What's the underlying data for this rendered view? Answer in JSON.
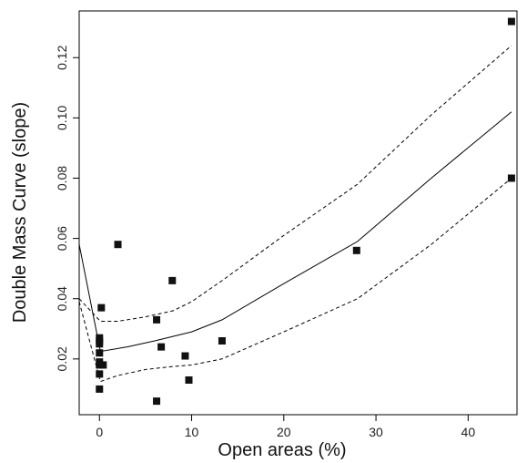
{
  "chart_data": {
    "type": "scatter",
    "title": "",
    "xlabel": "Open areas (%)",
    "ylabel": "Double Mass Curve (slope)",
    "xlim": [
      -2.2,
      45.3
    ],
    "ylim": [
      0.0015,
      0.1355
    ],
    "xticks": [
      0,
      10,
      20,
      30,
      40
    ],
    "yticks": [
      0.02,
      0.04,
      0.06,
      0.08,
      0.1,
      0.12
    ],
    "ytick_labels": [
      "0.02",
      "0.04",
      "0.06",
      "0.08",
      "0.10",
      "0.12"
    ],
    "grid": false,
    "series": [
      {
        "kind": "points",
        "x": [
          0.0,
          0.0,
          0.0,
          0.0,
          0.0,
          0.0,
          0.0,
          0.0,
          0.2,
          0.4,
          2.0,
          6.2,
          6.2,
          6.7,
          7.9,
          9.3,
          9.7,
          13.3,
          27.9,
          44.7,
          44.7
        ],
        "y": [
          0.01,
          0.015,
          0.019,
          0.022,
          0.025,
          0.026,
          0.027,
          0.018,
          0.037,
          0.018,
          0.058,
          0.006,
          0.033,
          0.024,
          0.046,
          0.021,
          0.013,
          0.026,
          0.056,
          0.132,
          0.08
        ]
      },
      {
        "kind": "fit",
        "x": [
          -2.2,
          0.1,
          3.0,
          6.0,
          10.0,
          13.3,
          20.0,
          28.0,
          36.0,
          44.7
        ],
        "y": [
          0.058,
          0.0225,
          0.024,
          0.026,
          0.029,
          0.033,
          0.045,
          0.059,
          0.08,
          0.102
        ]
      },
      {
        "kind": "upper-band",
        "x": [
          -2.2,
          0.1,
          2.0,
          5.0,
          8.0,
          10.0,
          13.3,
          20.0,
          28.0,
          36.0,
          44.7
        ],
        "y": [
          0.04,
          0.0325,
          0.0325,
          0.034,
          0.036,
          0.039,
          0.046,
          0.061,
          0.078,
          0.101,
          0.124
        ]
      },
      {
        "kind": "lower-band",
        "x": [
          -2.2,
          0.1,
          2.0,
          5.0,
          8.0,
          10.0,
          13.3,
          20.0,
          28.0,
          36.0,
          44.7
        ],
        "y": [
          0.039,
          0.0125,
          0.0145,
          0.0165,
          0.0175,
          0.018,
          0.02,
          0.029,
          0.04,
          0.058,
          0.08
        ]
      }
    ]
  }
}
